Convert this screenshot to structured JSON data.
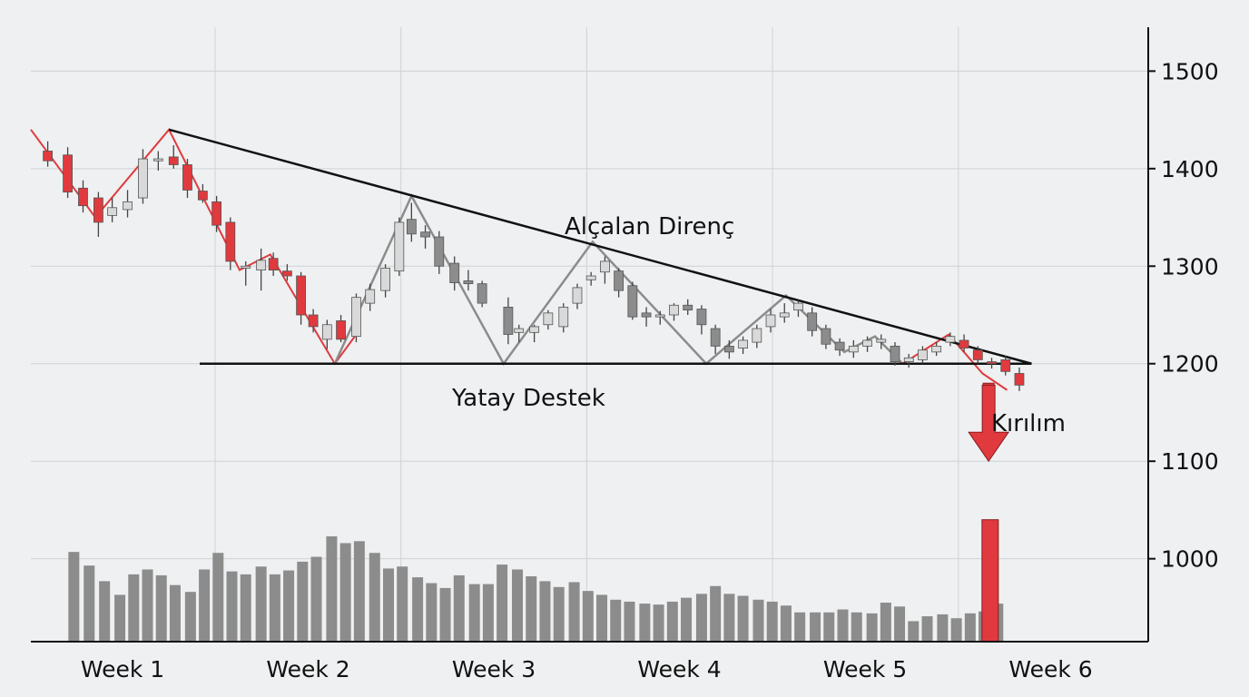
{
  "colors": {
    "background": "#eef0f1",
    "grid": "#cfd3d6",
    "bear_candle": "#e03a3e",
    "bull_candle": "#d9d9d9",
    "gray_candle": "#8c8c8c",
    "wick": "#444444",
    "volume": "#8c8c8c",
    "volume_breakout": "#e03a3e",
    "trendline": "#111111",
    "zigzag_red": "#e03a3e",
    "zigzag_gray": "#8c8c8c",
    "arrow": "#e03a3e"
  },
  "chart_data": {
    "type": "candlestick",
    "title": "",
    "xlabel": "",
    "ylabel": "",
    "x_ticks": [
      "Week 1",
      "Week 2",
      "Week 3",
      "Week 4",
      "Week 5",
      "Week 6"
    ],
    "y_ticks": [
      1000,
      1100,
      1200,
      1300,
      1400,
      1500
    ],
    "ylim": [
      915,
      1545
    ],
    "xlim": [
      0,
      36.4
    ],
    "y_axis_position": "right",
    "grid": true,
    "candles": [
      {
        "x": 0.55,
        "o": 1418,
        "h": 1428,
        "l": 1402,
        "c": 1408,
        "kind": "bear"
      },
      {
        "x": 1.2,
        "o": 1414,
        "h": 1422,
        "l": 1370,
        "c": 1376,
        "kind": "bear"
      },
      {
        "x": 1.7,
        "o": 1380,
        "h": 1388,
        "l": 1355,
        "c": 1362,
        "kind": "bear"
      },
      {
        "x": 2.2,
        "o": 1370,
        "h": 1376,
        "l": 1330,
        "c": 1345,
        "kind": "bear"
      },
      {
        "x": 2.65,
        "o": 1352,
        "h": 1370,
        "l": 1345,
        "c": 1360,
        "kind": "bull"
      },
      {
        "x": 3.15,
        "o": 1358,
        "h": 1378,
        "l": 1350,
        "c": 1366,
        "kind": "bull"
      },
      {
        "x": 3.65,
        "o": 1370,
        "h": 1420,
        "l": 1364,
        "c": 1410,
        "kind": "bull"
      },
      {
        "x": 4.15,
        "o": 1408,
        "h": 1418,
        "l": 1398,
        "c": 1410,
        "kind": "bull"
      },
      {
        "x": 4.65,
        "o": 1412,
        "h": 1424,
        "l": 1400,
        "c": 1404,
        "kind": "bear"
      },
      {
        "x": 5.1,
        "o": 1404,
        "h": 1410,
        "l": 1370,
        "c": 1378,
        "kind": "bear"
      },
      {
        "x": 5.6,
        "o": 1377,
        "h": 1384,
        "l": 1365,
        "c": 1368,
        "kind": "bear"
      },
      {
        "x": 6.05,
        "o": 1366,
        "h": 1372,
        "l": 1335,
        "c": 1342,
        "kind": "bear"
      },
      {
        "x": 6.5,
        "o": 1345,
        "h": 1350,
        "l": 1296,
        "c": 1305,
        "kind": "bear"
      },
      {
        "x": 7.0,
        "o": 1298,
        "h": 1305,
        "l": 1280,
        "c": 1300,
        "kind": "bull"
      },
      {
        "x": 7.5,
        "o": 1306,
        "h": 1318,
        "l": 1275,
        "c": 1296,
        "kind": "bull"
      },
      {
        "x": 7.9,
        "o": 1308,
        "h": 1314,
        "l": 1290,
        "c": 1296,
        "kind": "bear"
      },
      {
        "x": 8.35,
        "o": 1295,
        "h": 1302,
        "l": 1285,
        "c": 1290,
        "kind": "bear"
      },
      {
        "x": 8.8,
        "o": 1290,
        "h": 1294,
        "l": 1240,
        "c": 1250,
        "kind": "bear"
      },
      {
        "x": 9.2,
        "o": 1250,
        "h": 1256,
        "l": 1232,
        "c": 1238,
        "kind": "bear"
      },
      {
        "x": 9.65,
        "o": 1225,
        "h": 1245,
        "l": 1215,
        "c": 1240,
        "kind": "bull"
      },
      {
        "x": 10.1,
        "o": 1244,
        "h": 1250,
        "l": 1222,
        "c": 1225,
        "kind": "bear"
      },
      {
        "x": 10.6,
        "o": 1228,
        "h": 1272,
        "l": 1222,
        "c": 1268,
        "kind": "bull"
      },
      {
        "x": 11.05,
        "o": 1262,
        "h": 1282,
        "l": 1254,
        "c": 1276,
        "kind": "bull"
      },
      {
        "x": 11.55,
        "o": 1275,
        "h": 1302,
        "l": 1268,
        "c": 1298,
        "kind": "bull"
      },
      {
        "x": 12.0,
        "o": 1295,
        "h": 1350,
        "l": 1290,
        "c": 1345,
        "kind": "bull"
      },
      {
        "x": 12.4,
        "o": 1348,
        "h": 1365,
        "l": 1325,
        "c": 1333,
        "kind": "gray"
      },
      {
        "x": 12.85,
        "o": 1335,
        "h": 1342,
        "l": 1318,
        "c": 1330,
        "kind": "gray"
      },
      {
        "x": 13.3,
        "o": 1330,
        "h": 1336,
        "l": 1292,
        "c": 1300,
        "kind": "gray"
      },
      {
        "x": 13.8,
        "o": 1303,
        "h": 1310,
        "l": 1275,
        "c": 1283,
        "kind": "gray"
      },
      {
        "x": 14.25,
        "o": 1285,
        "h": 1296,
        "l": 1275,
        "c": 1282,
        "kind": "gray"
      },
      {
        "x": 14.7,
        "o": 1282,
        "h": 1285,
        "l": 1258,
        "c": 1262,
        "kind": "gray"
      },
      {
        "x": 15.55,
        "o": 1258,
        "h": 1268,
        "l": 1220,
        "c": 1230,
        "kind": "gray"
      },
      {
        "x": 15.9,
        "o": 1232,
        "h": 1240,
        "l": 1222,
        "c": 1236,
        "kind": "bull"
      },
      {
        "x": 16.4,
        "o": 1232,
        "h": 1240,
        "l": 1222,
        "c": 1238,
        "kind": "bull"
      },
      {
        "x": 16.85,
        "o": 1240,
        "h": 1255,
        "l": 1235,
        "c": 1252,
        "kind": "bull"
      },
      {
        "x": 17.35,
        "o": 1238,
        "h": 1262,
        "l": 1232,
        "c": 1258,
        "kind": "bull"
      },
      {
        "x": 17.8,
        "o": 1262,
        "h": 1282,
        "l": 1256,
        "c": 1278,
        "kind": "bull"
      },
      {
        "x": 18.25,
        "o": 1286,
        "h": 1294,
        "l": 1280,
        "c": 1290,
        "kind": "bull"
      },
      {
        "x": 18.7,
        "o": 1294,
        "h": 1310,
        "l": 1282,
        "c": 1305,
        "kind": "bull"
      },
      {
        "x": 19.15,
        "o": 1295,
        "h": 1298,
        "l": 1268,
        "c": 1275,
        "kind": "gray"
      },
      {
        "x": 19.6,
        "o": 1280,
        "h": 1284,
        "l": 1245,
        "c": 1248,
        "kind": "gray"
      },
      {
        "x": 20.05,
        "o": 1252,
        "h": 1258,
        "l": 1238,
        "c": 1248,
        "kind": "gray"
      },
      {
        "x": 20.5,
        "o": 1250,
        "h": 1254,
        "l": 1240,
        "c": 1248,
        "kind": "bull"
      },
      {
        "x": 20.95,
        "o": 1250,
        "h": 1262,
        "l": 1244,
        "c": 1260,
        "kind": "bull"
      },
      {
        "x": 21.4,
        "o": 1260,
        "h": 1266,
        "l": 1250,
        "c": 1255,
        "kind": "gray"
      },
      {
        "x": 21.85,
        "o": 1256,
        "h": 1260,
        "l": 1230,
        "c": 1240,
        "kind": "gray"
      },
      {
        "x": 22.3,
        "o": 1236,
        "h": 1240,
        "l": 1210,
        "c": 1218,
        "kind": "gray"
      },
      {
        "x": 22.75,
        "o": 1218,
        "h": 1224,
        "l": 1205,
        "c": 1212,
        "kind": "gray"
      },
      {
        "x": 23.2,
        "o": 1216,
        "h": 1228,
        "l": 1210,
        "c": 1224,
        "kind": "bull"
      },
      {
        "x": 23.65,
        "o": 1222,
        "h": 1240,
        "l": 1216,
        "c": 1236,
        "kind": "bull"
      },
      {
        "x": 24.1,
        "o": 1238,
        "h": 1256,
        "l": 1232,
        "c": 1250,
        "kind": "bull"
      },
      {
        "x": 24.55,
        "o": 1248,
        "h": 1262,
        "l": 1242,
        "c": 1252,
        "kind": "bull"
      },
      {
        "x": 25.0,
        "o": 1255,
        "h": 1265,
        "l": 1248,
        "c": 1262,
        "kind": "bull"
      },
      {
        "x": 25.45,
        "o": 1252,
        "h": 1258,
        "l": 1228,
        "c": 1234,
        "kind": "gray"
      },
      {
        "x": 25.9,
        "o": 1236,
        "h": 1240,
        "l": 1215,
        "c": 1220,
        "kind": "gray"
      },
      {
        "x": 26.35,
        "o": 1222,
        "h": 1226,
        "l": 1208,
        "c": 1214,
        "kind": "gray"
      },
      {
        "x": 26.8,
        "o": 1212,
        "h": 1224,
        "l": 1206,
        "c": 1218,
        "kind": "bull"
      },
      {
        "x": 27.25,
        "o": 1218,
        "h": 1228,
        "l": 1212,
        "c": 1224,
        "kind": "bull"
      },
      {
        "x": 27.7,
        "o": 1225,
        "h": 1230,
        "l": 1215,
        "c": 1222,
        "kind": "bull"
      },
      {
        "x": 28.15,
        "o": 1218,
        "h": 1222,
        "l": 1198,
        "c": 1202,
        "kind": "gray"
      },
      {
        "x": 28.6,
        "o": 1202,
        "h": 1210,
        "l": 1196,
        "c": 1206,
        "kind": "bull"
      },
      {
        "x": 29.05,
        "o": 1204,
        "h": 1218,
        "l": 1200,
        "c": 1214,
        "kind": "bull"
      },
      {
        "x": 29.5,
        "o": 1212,
        "h": 1222,
        "l": 1208,
        "c": 1218,
        "kind": "bull"
      },
      {
        "x": 29.95,
        "o": 1222,
        "h": 1232,
        "l": 1218,
        "c": 1228,
        "kind": "bull"
      },
      {
        "x": 30.4,
        "o": 1224,
        "h": 1230,
        "l": 1212,
        "c": 1216,
        "kind": "bear"
      },
      {
        "x": 30.85,
        "o": 1214,
        "h": 1218,
        "l": 1200,
        "c": 1204,
        "kind": "bear"
      },
      {
        "x": 31.3,
        "o": 1202,
        "h": 1206,
        "l": 1195,
        "c": 1200,
        "kind": "bear"
      },
      {
        "x": 31.75,
        "o": 1204,
        "h": 1208,
        "l": 1188,
        "c": 1192,
        "kind": "bear"
      },
      {
        "x": 32.2,
        "o": 1190,
        "h": 1196,
        "l": 1172,
        "c": 1178,
        "kind": "bear"
      }
    ],
    "zigzag_red": [
      {
        "x": 0,
        "y": 1440
      },
      {
        "x": 2.1,
        "y": 1350
      },
      {
        "x": 4.5,
        "y": 1440
      },
      {
        "x": 6.8,
        "y": 1296
      },
      {
        "x": 7.8,
        "y": 1312
      },
      {
        "x": 9.9,
        "y": 1200
      },
      {
        "x": 10.6,
        "y": 1230
      }
    ],
    "zigzag_gray": [
      {
        "x": 9.9,
        "y": 1200
      },
      {
        "x": 12.4,
        "y": 1372
      },
      {
        "x": 15.4,
        "y": 1200
      },
      {
        "x": 18.3,
        "y": 1325
      },
      {
        "x": 22.0,
        "y": 1200
      },
      {
        "x": 24.6,
        "y": 1270
      },
      {
        "x": 26.5,
        "y": 1212
      },
      {
        "x": 27.5,
        "y": 1228
      },
      {
        "x": 28.4,
        "y": 1200
      }
    ],
    "zigzag_red_end": [
      {
        "x": 28.4,
        "y": 1200
      },
      {
        "x": 29.9,
        "y": 1230
      },
      {
        "x": 31.0,
        "y": 1190
      },
      {
        "x": 31.8,
        "y": 1173
      }
    ],
    "resistance_line": {
      "start": {
        "x": 4.5,
        "y": 1440
      },
      "end": {
        "x": 32.6,
        "y": 1200
      }
    },
    "support_line": {
      "start": {
        "x": 5.5,
        "y": 1200
      },
      "end": {
        "x": 32.6,
        "y": 1200
      }
    },
    "breakout": {
      "candle": {
        "x": 31.2,
        "o": 1180,
        "c": 1118
      },
      "arrow_tip": {
        "x": 31.2,
        "y": 1100
      }
    },
    "volume": [
      {
        "x": 1.4,
        "v": 1007
      },
      {
        "x": 1.9,
        "v": 993
      },
      {
        "x": 2.4,
        "v": 977
      },
      {
        "x": 2.9,
        "v": 963
      },
      {
        "x": 3.35,
        "v": 984
      },
      {
        "x": 3.8,
        "v": 989
      },
      {
        "x": 4.25,
        "v": 983
      },
      {
        "x": 4.7,
        "v": 973
      },
      {
        "x": 5.2,
        "v": 966
      },
      {
        "x": 5.65,
        "v": 989
      },
      {
        "x": 6.1,
        "v": 1006
      },
      {
        "x": 6.55,
        "v": 987
      },
      {
        "x": 7.0,
        "v": 984
      },
      {
        "x": 7.5,
        "v": 992
      },
      {
        "x": 7.95,
        "v": 984
      },
      {
        "x": 8.4,
        "v": 988
      },
      {
        "x": 8.85,
        "v": 997
      },
      {
        "x": 9.3,
        "v": 1002
      },
      {
        "x": 9.8,
        "v": 1023
      },
      {
        "x": 10.25,
        "v": 1016
      },
      {
        "x": 10.7,
        "v": 1018
      },
      {
        "x": 11.2,
        "v": 1006
      },
      {
        "x": 11.65,
        "v": 990
      },
      {
        "x": 12.1,
        "v": 992
      },
      {
        "x": 12.6,
        "v": 981
      },
      {
        "x": 13.05,
        "v": 975
      },
      {
        "x": 13.5,
        "v": 970
      },
      {
        "x": 13.95,
        "v": 983
      },
      {
        "x": 14.45,
        "v": 974
      },
      {
        "x": 14.9,
        "v": 974
      },
      {
        "x": 15.35,
        "v": 994
      },
      {
        "x": 15.85,
        "v": 989
      },
      {
        "x": 16.3,
        "v": 982
      },
      {
        "x": 16.75,
        "v": 977
      },
      {
        "x": 17.2,
        "v": 971
      },
      {
        "x": 17.7,
        "v": 976
      },
      {
        "x": 18.15,
        "v": 967
      },
      {
        "x": 18.6,
        "v": 963
      },
      {
        "x": 19.05,
        "v": 958
      },
      {
        "x": 19.5,
        "v": 956
      },
      {
        "x": 20.0,
        "v": 954
      },
      {
        "x": 20.45,
        "v": 953
      },
      {
        "x": 20.9,
        "v": 956
      },
      {
        "x": 21.35,
        "v": 960
      },
      {
        "x": 21.85,
        "v": 964
      },
      {
        "x": 22.3,
        "v": 972
      },
      {
        "x": 22.75,
        "v": 964
      },
      {
        "x": 23.2,
        "v": 962
      },
      {
        "x": 23.7,
        "v": 958
      },
      {
        "x": 24.15,
        "v": 956
      },
      {
        "x": 24.6,
        "v": 952
      },
      {
        "x": 25.05,
        "v": 945
      },
      {
        "x": 25.55,
        "v": 945
      },
      {
        "x": 26.0,
        "v": 945
      },
      {
        "x": 26.45,
        "v": 948
      },
      {
        "x": 26.9,
        "v": 945
      },
      {
        "x": 27.4,
        "v": 944
      },
      {
        "x": 27.85,
        "v": 955
      },
      {
        "x": 28.3,
        "v": 951
      },
      {
        "x": 28.75,
        "v": 936
      },
      {
        "x": 29.2,
        "v": 941
      },
      {
        "x": 29.7,
        "v": 943
      },
      {
        "x": 30.15,
        "v": 939
      },
      {
        "x": 30.6,
        "v": 944
      },
      {
        "x": 31.05,
        "v": 946
      },
      {
        "x": 31.5,
        "v": 954
      }
    ],
    "volume_breakout": {
      "x": 31.25,
      "v": 1040
    },
    "annotations": {
      "resistance": "Alçalan Direnç",
      "support": "Yatay Destek",
      "breakout": "Kırılım"
    }
  }
}
